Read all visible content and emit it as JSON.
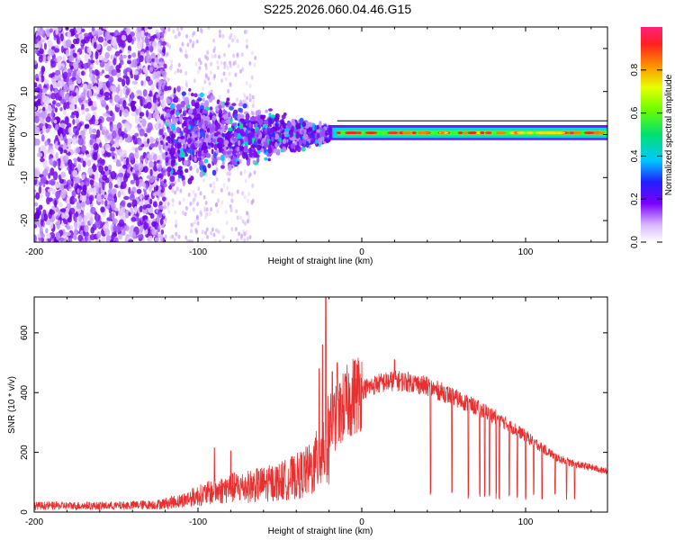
{
  "title": "S225.2026.060.04.46.G15",
  "chart_data": [
    {
      "type": "heatmap",
      "xlabel": "Height of straight line (km)",
      "ylabel": "Frequency (Hz)",
      "xlim": [
        -200,
        150
      ],
      "ylim": [
        -25,
        25
      ],
      "x_ticks": [
        -200,
        -100,
        0,
        100
      ],
      "x_tick_labels": [
        "-200",
        "-100",
        "0",
        "100"
      ],
      "y_ticks": [
        -20,
        -10,
        0,
        10,
        20
      ],
      "y_tick_labels": [
        "-20",
        "-10",
        "0",
        "10",
        "20"
      ],
      "colorbar": {
        "label": "Normalized spectral amplitude",
        "range": [
          0,
          1
        ],
        "ticks": [
          0.0,
          0.2,
          0.4,
          0.6,
          0.8
        ],
        "tick_labels": [
          "0.0",
          "0.2",
          "0.4",
          "0.6",
          "0.8"
        ],
        "colormap": "rainbow (white-violet-blue-cyan-green-yellow-red-magenta)"
      },
      "features": [
        {
          "x_range": [
            -200,
            -120
          ],
          "y_range": [
            -25,
            25
          ],
          "amplitude": "0.0-0.2",
          "pattern": "scattered noise"
        },
        {
          "x_range": [
            -120,
            -20
          ],
          "y_range": [
            -10,
            10
          ],
          "amplitude": "0.1-0.3",
          "pattern": "converging noise"
        },
        {
          "x_range": [
            -20,
            150
          ],
          "y_range": [
            -1,
            2
          ],
          "amplitude": "0.4-1.0",
          "pattern": "narrow band near 0 Hz"
        }
      ]
    },
    {
      "type": "line",
      "xlabel": "Height of straight line (km)",
      "ylabel": "SNR (10 * v/v)",
      "xlim": [
        -200,
        150
      ],
      "ylim": [
        0,
        720
      ],
      "x_ticks": [
        -200,
        -100,
        0,
        100
      ],
      "x_tick_labels": [
        "-200",
        "-100",
        "0",
        "100"
      ],
      "y_ticks": [
        0,
        200,
        400,
        600
      ],
      "y_tick_labels": [
        "0",
        "200",
        "400",
        "600"
      ],
      "color": "#e83030",
      "envelope": {
        "x": [
          -200,
          -150,
          -125,
          -110,
          -100,
          -90,
          -80,
          -70,
          -60,
          -50,
          -40,
          -30,
          -25,
          -20,
          -15,
          -10,
          -5,
          0,
          10,
          20,
          30,
          40,
          50,
          60,
          70,
          80,
          90,
          100,
          110,
          120,
          130,
          140,
          150
        ],
        "y": [
          25,
          25,
          30,
          45,
          65,
          80,
          95,
          100,
          110,
          120,
          140,
          170,
          230,
          290,
          320,
          360,
          390,
          410,
          430,
          440,
          435,
          420,
          400,
          375,
          350,
          325,
          290,
          255,
          215,
          180,
          160,
          150,
          135
        ]
      },
      "spikes": [
        {
          "x": -22,
          "y": 720
        },
        {
          "x": -24,
          "y": 560
        },
        {
          "x": -26,
          "y": 480
        },
        {
          "x": -18,
          "y": 470
        },
        {
          "x": -15,
          "y": 500
        },
        {
          "x": 20,
          "y": 510
        },
        {
          "x": -90,
          "y": 215
        },
        {
          "x": -80,
          "y": 205
        }
      ],
      "dropouts": [
        42,
        55,
        65,
        72,
        75,
        78,
        82,
        84,
        90,
        95,
        100,
        105,
        110,
        118,
        125,
        130
      ]
    }
  ]
}
